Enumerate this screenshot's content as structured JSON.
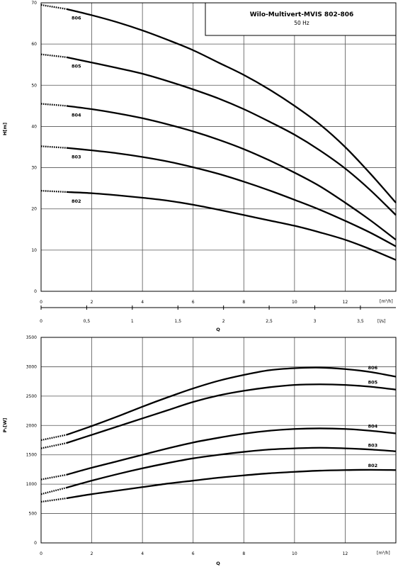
{
  "chart_data": [
    {
      "type": "line",
      "title": "Wilo-Multivert-MVIS 802-806",
      "subtitle": "50 Hz",
      "ylabel": "H[m]",
      "xlabel": "Q",
      "x_unit": "[m³/h]",
      "x2_unit": "[l/s]",
      "xlim": [
        0,
        14
      ],
      "ylim": [
        0,
        70
      ],
      "x_ticks": [
        0,
        2,
        4,
        6,
        8,
        10,
        12
      ],
      "y_ticks": [
        0,
        10,
        20,
        30,
        40,
        50,
        60,
        70
      ],
      "x2_ticks": [
        "0",
        "0,5",
        "1",
        "1,5",
        "2",
        "2,5",
        "3",
        "3,5"
      ],
      "x2_tick_values": [
        0,
        0.5,
        1,
        1.5,
        2,
        2.5,
        3,
        3.5
      ],
      "grid": true,
      "series": [
        {
          "name": "806",
          "x": [
            0,
            1,
            2,
            3,
            4,
            5,
            6,
            7,
            8,
            9,
            10,
            11,
            12,
            13,
            14
          ],
          "y": [
            69.5,
            68.5,
            67,
            65.3,
            63.3,
            61,
            58.5,
            55.5,
            52.5,
            49,
            45,
            40.5,
            35,
            28.5,
            21.5
          ]
        },
        {
          "name": "805",
          "x": [
            0,
            1,
            2,
            3,
            4,
            5,
            6,
            7,
            8,
            9,
            10,
            11,
            12,
            13,
            14
          ],
          "y": [
            57.5,
            56.8,
            55.5,
            54.2,
            52.8,
            51,
            49,
            46.8,
            44.2,
            41.2,
            38,
            34.2,
            29.8,
            24.5,
            18.5
          ]
        },
        {
          "name": "804",
          "x": [
            0,
            1,
            2,
            3,
            4,
            5,
            6,
            7,
            8,
            9,
            10,
            11,
            12,
            13,
            14
          ],
          "y": [
            45.5,
            45,
            44.2,
            43.2,
            42,
            40.5,
            38.8,
            36.8,
            34.5,
            31.8,
            28.8,
            25.5,
            21.5,
            17.2,
            12.5
          ]
        },
        {
          "name": "803",
          "x": [
            0,
            1,
            2,
            3,
            4,
            5,
            6,
            7,
            8,
            9,
            10,
            11,
            12,
            13,
            14
          ],
          "y": [
            35.2,
            34.8,
            34.2,
            33.5,
            32.6,
            31.5,
            30.1,
            28.5,
            26.6,
            24.5,
            22.2,
            19.8,
            17.1,
            14.2,
            10.9
          ]
        },
        {
          "name": "802",
          "x": [
            0,
            1,
            2,
            3,
            4,
            5,
            6,
            7,
            8,
            9,
            10,
            11,
            12,
            13,
            14
          ],
          "y": [
            24.4,
            24.1,
            23.8,
            23.3,
            22.7,
            22,
            21,
            19.8,
            18.5,
            17.2,
            15.9,
            14.3,
            12.5,
            10.2,
            7.6
          ]
        }
      ]
    },
    {
      "type": "line",
      "ylabel": "P₁[W]",
      "xlabel": "Q",
      "x_unit": "[m³/h]",
      "xlim": [
        0,
        14
      ],
      "ylim": [
        0,
        3500
      ],
      "x_ticks": [
        0,
        2,
        4,
        6,
        8,
        10,
        12
      ],
      "y_ticks": [
        0,
        500,
        1000,
        1500,
        2000,
        2500,
        3000,
        3500
      ],
      "grid": true,
      "series": [
        {
          "name": "806",
          "x": [
            0,
            1,
            2,
            3,
            4,
            5,
            6,
            7,
            8,
            9,
            10,
            11,
            12,
            13,
            14
          ],
          "y": [
            1750,
            1840,
            1990,
            2150,
            2320,
            2480,
            2630,
            2760,
            2860,
            2940,
            2975,
            2985,
            2960,
            2910,
            2830
          ]
        },
        {
          "name": "805",
          "x": [
            0,
            1,
            2,
            3,
            4,
            5,
            6,
            7,
            8,
            9,
            10,
            11,
            12,
            13,
            14
          ],
          "y": [
            1610,
            1700,
            1840,
            1980,
            2120,
            2260,
            2400,
            2510,
            2590,
            2650,
            2690,
            2700,
            2690,
            2660,
            2610
          ]
        },
        {
          "name": "804",
          "x": [
            0,
            1,
            2,
            3,
            4,
            5,
            6,
            7,
            8,
            9,
            10,
            11,
            12,
            13,
            14
          ],
          "y": [
            1080,
            1160,
            1280,
            1390,
            1500,
            1610,
            1710,
            1790,
            1860,
            1910,
            1940,
            1950,
            1940,
            1910,
            1865
          ]
        },
        {
          "name": "803",
          "x": [
            0,
            1,
            2,
            3,
            4,
            5,
            6,
            7,
            8,
            9,
            10,
            11,
            12,
            13,
            14
          ],
          "y": [
            830,
            940,
            1060,
            1170,
            1270,
            1360,
            1440,
            1500,
            1550,
            1590,
            1610,
            1620,
            1610,
            1590,
            1560
          ]
        },
        {
          "name": "802",
          "x": [
            0,
            1,
            2,
            3,
            4,
            5,
            6,
            7,
            8,
            9,
            10,
            11,
            12,
            13,
            14
          ],
          "y": [
            700,
            760,
            830,
            890,
            950,
            1010,
            1060,
            1110,
            1150,
            1185,
            1210,
            1230,
            1240,
            1245,
            1240
          ]
        }
      ]
    }
  ]
}
